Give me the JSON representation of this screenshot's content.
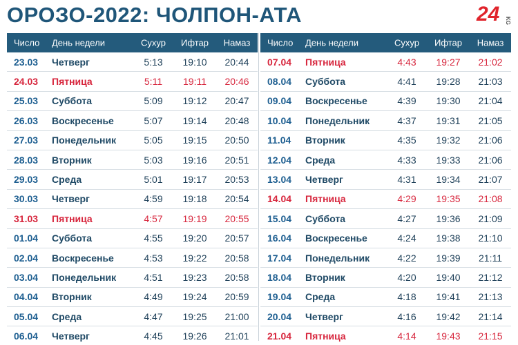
{
  "header": {
    "title": "ОРОЗО-2022: ЧОЛПОН-АТА",
    "logo": "24",
    "logo_sub": "KG"
  },
  "columns": [
    "Число",
    "День недели",
    "Сухур",
    "Ифтар",
    "Намаз"
  ],
  "tables": [
    {
      "rows": [
        [
          "23.03",
          "Четверг",
          "5:13",
          "19:10",
          "20:44"
        ],
        [
          "24.03",
          "Пятница",
          "5:11",
          "19:11",
          "20:46"
        ],
        [
          "25.03",
          "Суббота",
          "5:09",
          "19:12",
          "20:47"
        ],
        [
          "26.03",
          "Воскресенье",
          "5:07",
          "19:14",
          "20:48"
        ],
        [
          "27.03",
          "Понедельник",
          "5:05",
          "19:15",
          "20:50"
        ],
        [
          "28.03",
          "Вторник",
          "5:03",
          "19:16",
          "20:51"
        ],
        [
          "29.03",
          "Среда",
          "5:01",
          "19:17",
          "20:53"
        ],
        [
          "30.03",
          "Четверг",
          "4:59",
          "19:18",
          "20:54"
        ],
        [
          "31.03",
          "Пятница",
          "4:57",
          "19:19",
          "20:55"
        ],
        [
          "01.04",
          "Суббота",
          "4:55",
          "19:20",
          "20:57"
        ],
        [
          "02.04",
          "Воскресенье",
          "4:53",
          "19:22",
          "20:58"
        ],
        [
          "03.04",
          "Понедельник",
          "4:51",
          "19:23",
          "20:58"
        ],
        [
          "04.04",
          "Вторник",
          "4:49",
          "19:24",
          "20:59"
        ],
        [
          "05.04",
          "Среда",
          "4:47",
          "19:25",
          "21:00"
        ],
        [
          "06.04",
          "Четверг",
          "4:45",
          "19:26",
          "21:01"
        ]
      ]
    },
    {
      "rows": [
        [
          "07.04",
          "Пятница",
          "4:43",
          "19:27",
          "21:02"
        ],
        [
          "08.04",
          "Суббота",
          "4:41",
          "19:28",
          "21:03"
        ],
        [
          "09.04",
          "Воскресенье",
          "4:39",
          "19:30",
          "21:04"
        ],
        [
          "10.04",
          "Понедельник",
          "4:37",
          "19:31",
          "21:05"
        ],
        [
          "11.04",
          "Вторник",
          "4:35",
          "19:32",
          "21:06"
        ],
        [
          "12.04",
          "Среда",
          "4:33",
          "19:33",
          "21:06"
        ],
        [
          "13.04",
          "Четверг",
          "4:31",
          "19:34",
          "21:07"
        ],
        [
          "14.04",
          "Пятница",
          "4:29",
          "19:35",
          "21:08"
        ],
        [
          "15.04",
          "Суббота",
          "4:27",
          "19:36",
          "21:09"
        ],
        [
          "16.04",
          "Воскресенье",
          "4:24",
          "19:38",
          "21:10"
        ],
        [
          "17.04",
          "Понедельник",
          "4:22",
          "19:39",
          "21:11"
        ],
        [
          "18.04",
          "Вторник",
          "4:20",
          "19:40",
          "21:12"
        ],
        [
          "19.04",
          "Среда",
          "4:18",
          "19:41",
          "21:13"
        ],
        [
          "20.04",
          "Четверг",
          "4:16",
          "19:42",
          "21:14"
        ],
        [
          "21.04",
          "Пятница",
          "4:14",
          "19:43",
          "21:15"
        ]
      ]
    }
  ]
}
